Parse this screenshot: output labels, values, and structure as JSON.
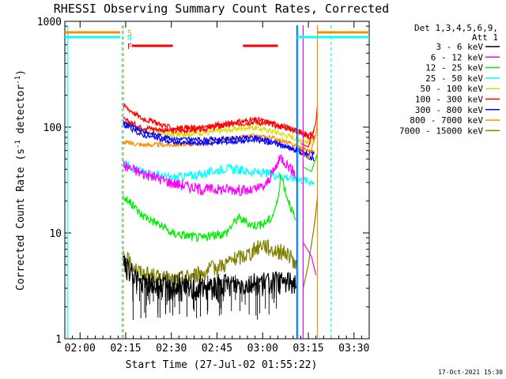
{
  "chart_data": {
    "type": "line",
    "title": "RHESSI Observing Summary Count Rates, Corrected",
    "xlabel": "Start Time (27-Jul-02 01:55:22)",
    "ylabel_main": "Corrected Count Rate (s",
    "ylabel_sup1": "-1",
    "ylabel_mid": " detector",
    "ylabel_sup2": "-1",
    "ylabel_end": ")",
    "y_scale": "log",
    "ylim": [
      1,
      1000
    ],
    "xlim_min": [
      115,
      215
    ],
    "y_ticks": [
      {
        "value": 1,
        "label": "1"
      },
      {
        "value": 10,
        "label": "10"
      },
      {
        "value": 100,
        "label": "100"
      },
      {
        "value": 1000,
        "label": "1000"
      }
    ],
    "x_ticks": [
      {
        "value": 120,
        "label": "02:00"
      },
      {
        "value": 135,
        "label": "02:15"
      },
      {
        "value": 150,
        "label": "02:30"
      },
      {
        "value": 165,
        "label": "02:45"
      },
      {
        "value": 180,
        "label": "03:00"
      },
      {
        "value": 195,
        "label": "03:15"
      },
      {
        "value": 210,
        "label": "03:30"
      }
    ],
    "legend_header": [
      "Det 1,3,4,5,6,9,",
      "Att 1"
    ],
    "series": [
      {
        "name": "3 - 6 keV",
        "color": "#000000"
      },
      {
        "name": "6 - 12 keV",
        "color": "#ff00ff"
      },
      {
        "name": "12 - 25 keV",
        "color": "#00ee00"
      },
      {
        "name": "25 - 50 keV",
        "color": "#00ffff"
      },
      {
        "name": "50 - 100 keV",
        "color": "#dddd00"
      },
      {
        "name": "100 - 300 keV",
        "color": "#ff0000"
      },
      {
        "name": "300 - 800 keV",
        "color": "#0000ff"
      },
      {
        "name": "800 - 7000 keV",
        "color": "#ff8c00"
      },
      {
        "name": "7000 - 15000 keV",
        "color": "#808000"
      }
    ],
    "flags": [
      {
        "letter": "S",
        "color": "#ff8c00"
      },
      {
        "letter": "N",
        "color": "#00ffff"
      },
      {
        "letter": "F",
        "color": "#ff0000"
      }
    ]
  },
  "footer": {
    "timestamp": "17-Oct-2021 15:30"
  }
}
